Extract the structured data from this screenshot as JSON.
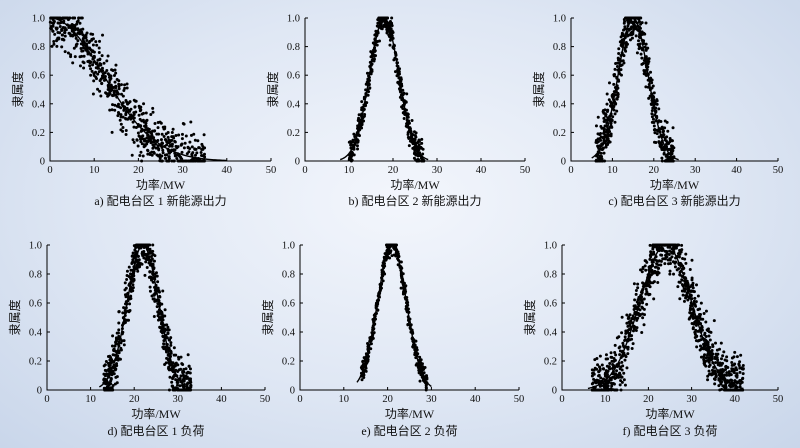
{
  "chart_data": [
    {
      "type": "scatter",
      "panel": "a",
      "caption": "a) 配电台区 1 新能源出力",
      "xlabel": "功率/MW",
      "ylabel": "隶属度",
      "xlim": [
        0,
        50
      ],
      "ylim": [
        0,
        1.0
      ],
      "xticks": [
        0,
        10,
        20,
        30,
        40,
        50
      ],
      "yticks": [
        0,
        0.2,
        0.4,
        0.6,
        0.8,
        1.0
      ],
      "ytick_labels": [
        "0",
        "0.2",
        "0.4",
        "0.6",
        "0.8",
        "1.0"
      ],
      "curve": {
        "shape": "half-gaussian",
        "center": 0,
        "sigma": 12,
        "x_range": [
          0,
          40
        ]
      },
      "scatter": {
        "x_range": [
          0,
          35
        ],
        "count": 700,
        "spread": 0.09
      }
    },
    {
      "type": "scatter",
      "panel": "b",
      "caption": "b) 配电台区 2 新能源出力",
      "xlabel": "功率/MW",
      "ylabel": "隶属度",
      "xlim": [
        0,
        50
      ],
      "ylim": [
        0,
        1.0
      ],
      "xticks": [
        0,
        10,
        20,
        30,
        40,
        50
      ],
      "yticks": [
        0,
        0.2,
        0.4,
        0.6,
        0.8,
        1.0
      ],
      "ytick_labels": [
        "0",
        "0.2",
        "0.4",
        "0.6",
        "0.8",
        "1.0"
      ],
      "curve": {
        "shape": "gaussian",
        "center": 18,
        "sigma": 3.3,
        "x_range": [
          8,
          28
        ]
      },
      "scatter": {
        "x_range": [
          10,
          27
        ],
        "count": 500,
        "spread": 0.05
      }
    },
    {
      "type": "scatter",
      "panel": "c",
      "caption": "c) 配电台区 3 新能源出力",
      "xlabel": "功率/MW",
      "ylabel": "隶属度",
      "xlim": [
        0,
        50
      ],
      "ylim": [
        0,
        1.0
      ],
      "xticks": [
        0,
        10,
        20,
        30,
        40,
        50
      ],
      "yticks": [
        0,
        0.2,
        0.4,
        0.6,
        0.8,
        1.0
      ],
      "ytick_labels": [
        "0",
        "0.2",
        "0.4",
        "0.6",
        "0.8",
        "1.0"
      ],
      "curve": {
        "shape": "gaussian",
        "center": 15,
        "sigma": 3.6,
        "x_range": [
          5,
          26
        ]
      },
      "scatter": {
        "x_range": [
          6,
          25
        ],
        "count": 600,
        "spread": 0.09
      }
    },
    {
      "type": "scatter",
      "panel": "d",
      "caption": "d) 配电台区 1 负荷",
      "xlabel": "功率/MW",
      "ylabel": "隶属度",
      "xlim": [
        0,
        50
      ],
      "ylim": [
        0,
        1.0
      ],
      "xticks": [
        0,
        10,
        20,
        30,
        40,
        50
      ],
      "yticks": [
        0,
        0.2,
        0.4,
        0.6,
        0.8,
        1.0
      ],
      "ytick_labels": [
        "0",
        "0.2",
        "0.4",
        "0.6",
        "0.8",
        "1.0"
      ],
      "curve": {
        "shape": "gaussian",
        "center": 22,
        "sigma": 3.6,
        "x_range": [
          12,
          33
        ]
      },
      "scatter": {
        "x_range": [
          13,
          33
        ],
        "count": 700,
        "spread": 0.09
      }
    },
    {
      "type": "scatter",
      "panel": "e",
      "caption": "e) 配电台区 2 负荷",
      "xlabel": "功率/MW",
      "ylabel": "隶属度",
      "xlim": [
        0,
        50
      ],
      "ylim": [
        0,
        1.0
      ],
      "xticks": [
        0,
        10,
        20,
        30,
        40,
        50
      ],
      "yticks": [
        0,
        0.2,
        0.4,
        0.6,
        0.8,
        1.0
      ],
      "ytick_labels": [
        "0",
        "0.2",
        "0.4",
        "0.6",
        "0.8",
        "1.0"
      ],
      "curve": {
        "shape": "gaussian",
        "center": 21,
        "sigma": 3.3,
        "x_range": [
          13,
          30
        ]
      },
      "scatter": {
        "x_range": [
          14,
          29
        ],
        "count": 450,
        "spread": 0.035
      }
    },
    {
      "type": "scatter",
      "panel": "f",
      "caption": "f) 配电台区 3 负荷",
      "xlabel": "功率/MW",
      "ylabel": "隶属度",
      "xlim": [
        0,
        50
      ],
      "ylim": [
        0,
        1.0
      ],
      "xticks": [
        0,
        10,
        20,
        30,
        40,
        50
      ],
      "yticks": [
        0,
        0.2,
        0.4,
        0.6,
        0.8,
        1.0
      ],
      "ytick_labels": [
        "0",
        "0.2",
        "0.4",
        "0.6",
        "0.8",
        "1.0"
      ],
      "curve": {
        "shape": "gaussian",
        "center": 24,
        "sigma": 6,
        "x_range": [
          6,
          42
        ]
      },
      "scatter": {
        "x_range": [
          7,
          42
        ],
        "count": 1000,
        "spread": 0.1
      }
    }
  ]
}
